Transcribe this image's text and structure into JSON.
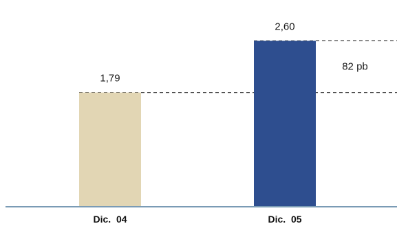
{
  "chart_data": {
    "type": "bar",
    "categories": [
      "Dic. 04",
      "Dic. 05"
    ],
    "values": [
      1.79,
      2.6
    ],
    "value_labels": [
      "1,79",
      "2,60"
    ],
    "bar_colors": [
      "#e2d6b4",
      "#2e4e8f"
    ],
    "axis_color": "#7a9bb5",
    "reference_line_color": "#222222",
    "annotation": {
      "text": "82 pb",
      "between_values": [
        1.79,
        2.6
      ]
    },
    "title": "",
    "xlabel": "",
    "ylabel": "",
    "ylim": [
      0,
      3.1
    ],
    "grid": false,
    "legend": "none"
  }
}
